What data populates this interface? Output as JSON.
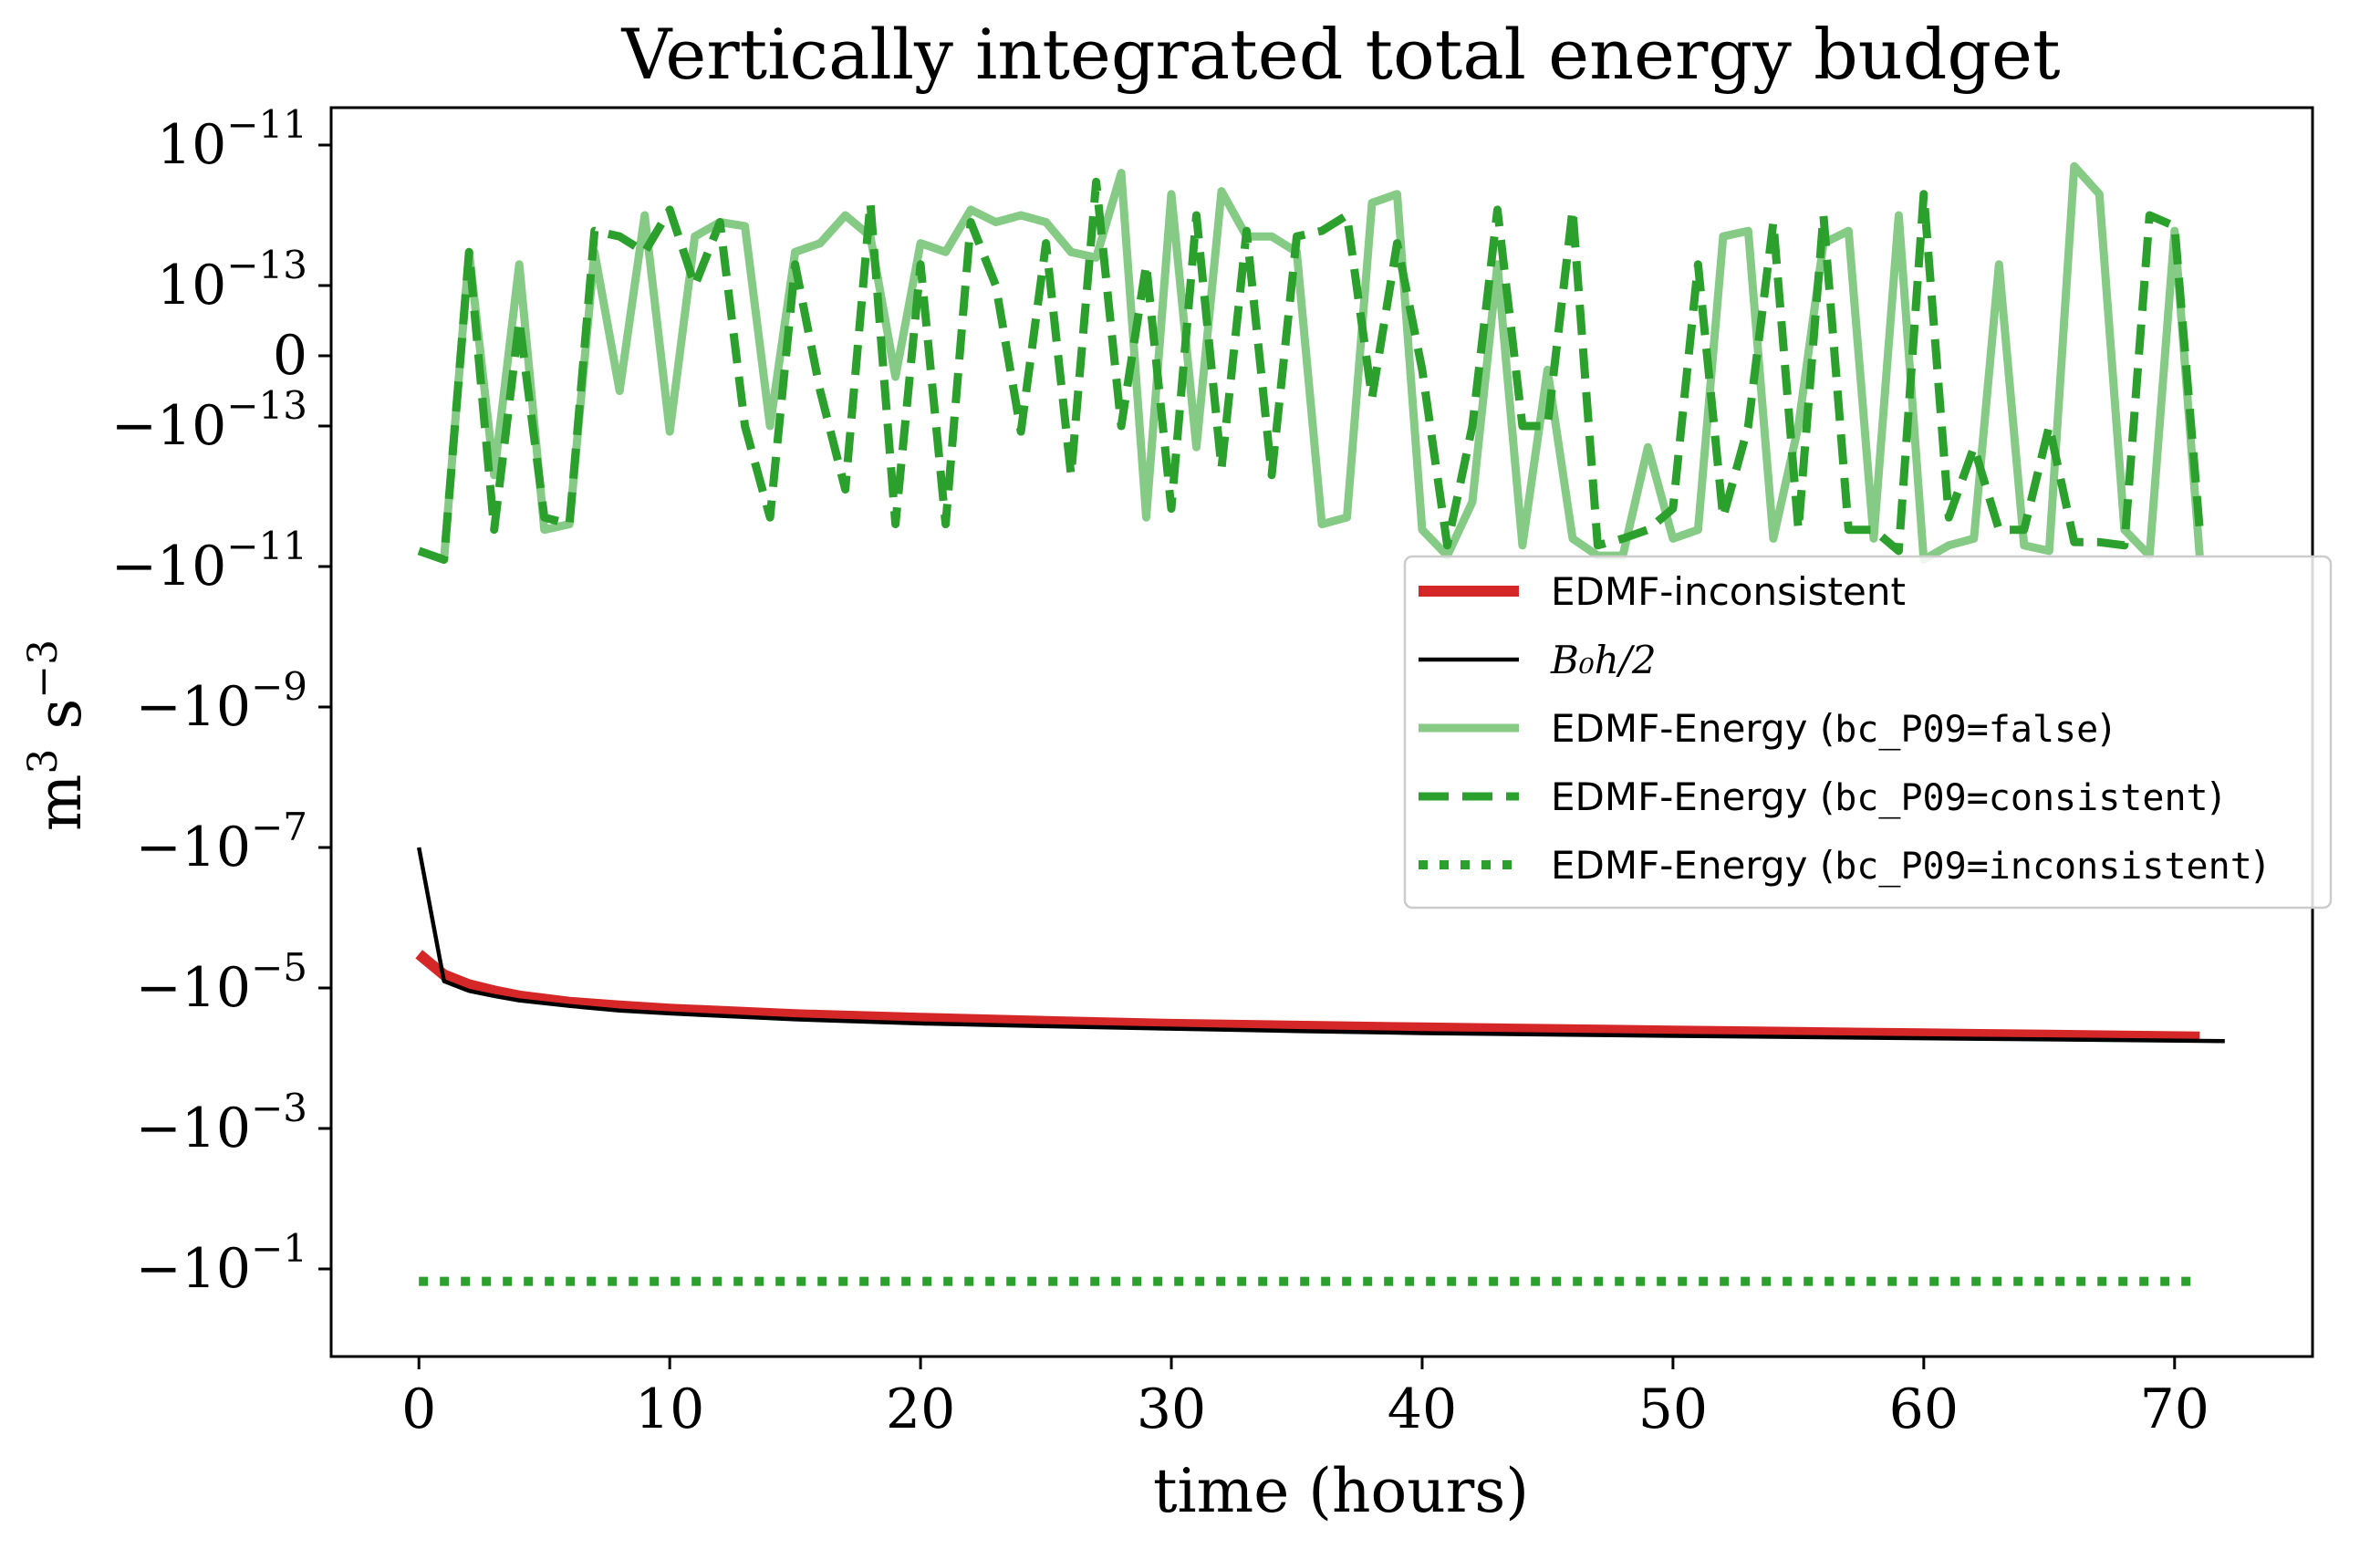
{
  "chart_data": {
    "type": "line",
    "title": "Vertically integrated total energy budget",
    "xlabel": "time (hours)",
    "ylabel_base": "m",
    "ylabel_exp1": "3",
    "ylabel_mid": " s",
    "ylabel_exp2": "−3",
    "xlim": [
      -3.5,
      75.5
    ],
    "xticks": [
      0,
      10,
      20,
      30,
      40,
      50,
      60,
      70
    ],
    "yscale": "symlog",
    "linthresh": 1e-13,
    "yticks": [
      {
        "value": 1e-11,
        "base": "10",
        "exp": "−11"
      },
      {
        "value": 1e-13,
        "base": "10",
        "exp": "−13"
      },
      {
        "value": 0,
        "base": "0",
        "exp": ""
      },
      {
        "value": -1e-13,
        "base": "−10",
        "exp": "−13"
      },
      {
        "value": -1e-11,
        "base": "−10",
        "exp": "−11"
      },
      {
        "value": -1e-09,
        "base": "−10",
        "exp": "−9"
      },
      {
        "value": -1e-07,
        "base": "−10",
        "exp": "−7"
      },
      {
        "value": -1e-05,
        "base": "−10",
        "exp": "−5"
      },
      {
        "value": -0.001,
        "base": "−10",
        "exp": "−3"
      },
      {
        "value": -0.1,
        "base": "−10",
        "exp": "−1"
      }
    ],
    "grid": false,
    "legend_position": "center-right",
    "legend": [
      {
        "label": "EDMF-inconsistent",
        "code": "",
        "suffix": "",
        "color": "#d62728",
        "style": "solid-thick"
      },
      {
        "label": "B₀h/2",
        "code": "",
        "suffix": "",
        "color": "#000000",
        "style": "solid-thin",
        "math": true
      },
      {
        "label": "EDMF-Energy (",
        "code": "bc_P09=false",
        "suffix": ")",
        "color": "#5cb85c",
        "style": "solid"
      },
      {
        "label": "EDMF-Energy (",
        "code": "bc_P09=consistent",
        "suffix": ")",
        "color": "#2ca02c",
        "style": "dashed"
      },
      {
        "label": "EDMF-Energy (",
        "code": "bc_P09=inconsistent",
        "suffix": ")",
        "color": "#2ca02c",
        "style": "dotted"
      }
    ],
    "series": [
      {
        "name": "EDMF-inconsistent",
        "color": "#d62728",
        "style": "solid-thick",
        "x": [
          0,
          1,
          2,
          3,
          4,
          6,
          8,
          10,
          15,
          20,
          25,
          30,
          35,
          40,
          45,
          50,
          55,
          60,
          65,
          71
        ],
        "y": [
          -3.3e-06,
          -6.5e-06,
          -9e-06,
          -1.1e-05,
          -1.3e-05,
          -1.6e-05,
          -1.8e-05,
          -2e-05,
          -2.4e-05,
          -2.7e-05,
          -3e-05,
          -3.3e-05,
          -3.5e-05,
          -3.7e-05,
          -3.9e-05,
          -4.1e-05,
          -4.3e-05,
          -4.5e-05,
          -4.7e-05,
          -5e-05
        ]
      },
      {
        "name": "B₀h/2",
        "color": "#000000",
        "style": "solid-thin",
        "x": [
          0,
          1,
          2,
          3,
          4,
          6,
          8,
          10,
          15,
          20,
          25,
          30,
          35,
          40,
          45,
          50,
          55,
          60,
          65,
          72
        ],
        "y": [
          -1e-07,
          -8e-06,
          -1.1e-05,
          -1.3e-05,
          -1.5e-05,
          -1.8e-05,
          -2.1e-05,
          -2.3e-05,
          -2.8e-05,
          -3.2e-05,
          -3.5e-05,
          -3.8e-05,
          -4.1e-05,
          -4.4e-05,
          -4.6e-05,
          -4.8e-05,
          -5e-05,
          -5.2e-05,
          -5.4e-05,
          -5.7e-05
        ]
      },
      {
        "name": "EDMF-Energy (bc_P09=false)",
        "color": "#5cb85c",
        "style": "solid",
        "x": [
          0,
          1,
          2,
          3,
          4,
          5,
          6,
          7,
          8,
          9,
          10,
          11,
          12,
          13,
          14,
          15,
          16,
          17,
          18,
          19,
          20,
          21,
          22,
          23,
          24,
          25,
          26,
          27,
          28,
          29,
          30,
          31,
          32,
          33,
          34,
          35,
          36,
          37,
          38,
          39,
          40,
          41,
          42,
          43,
          44,
          45,
          46,
          47,
          48,
          49,
          50,
          51,
          52,
          53,
          54,
          55,
          56,
          57,
          58,
          59,
          60,
          61,
          62,
          63,
          64,
          65,
          66,
          67,
          68,
          69,
          70,
          71
        ],
        "y": [
          -6e-12,
          -8e-12,
          3e-13,
          -5e-13,
          2e-13,
          -3e-12,
          -2.5e-12,
          3e-13,
          -5e-14,
          1e-12,
          -1.2e-13,
          5e-13,
          8e-13,
          7e-13,
          -1e-13,
          3e-13,
          4e-13,
          1e-12,
          5e-13,
          -3e-14,
          4e-13,
          3e-13,
          1.2e-12,
          8e-13,
          1e-12,
          8e-13,
          3e-13,
          2.5e-13,
          4e-12,
          -2e-12,
          2e-12,
          -2e-13,
          2.2e-12,
          5e-13,
          5e-13,
          3e-13,
          -2.5e-12,
          -2e-12,
          1.5e-12,
          2e-12,
          -3e-12,
          -7e-12,
          -1.2e-12,
          2e-13,
          -5e-12,
          -2e-14,
          -4e-12,
          -7e-12,
          -7e-12,
          -2e-13,
          -4e-12,
          -3e-12,
          5e-13,
          6e-13,
          -4e-12,
          -1e-13,
          4e-13,
          6e-13,
          -4e-12,
          1e-12,
          -8e-12,
          -5e-12,
          -4e-12,
          2e-13,
          -5e-12,
          -6e-12,
          5e-12,
          2e-12,
          -3e-12,
          -7e-12,
          6e-13,
          -7e-12
        ]
      },
      {
        "name": "EDMF-Energy (bc_P09=consistent)",
        "color": "#2ca02c",
        "style": "dashed",
        "x": [
          0,
          1,
          2,
          3,
          4,
          5,
          6,
          7,
          8,
          9,
          10,
          11,
          12,
          13,
          14,
          15,
          16,
          17,
          18,
          19,
          20,
          21,
          22,
          23,
          24,
          25,
          26,
          27,
          28,
          29,
          30,
          31,
          32,
          33,
          34,
          35,
          36,
          37,
          38,
          39,
          40,
          41,
          42,
          43,
          44,
          45,
          46,
          47,
          48,
          49,
          50,
          51,
          52,
          53,
          54,
          55,
          56,
          57,
          58,
          59,
          60,
          61,
          62,
          63,
          64,
          65,
          66,
          67,
          68,
          69,
          70,
          71
        ],
        "y": [
          -6e-12,
          -8e-12,
          3e-13,
          -3e-12,
          5e-14,
          -2e-12,
          -2.5e-12,
          6e-13,
          5e-13,
          3e-13,
          1.2e-12,
          1e-13,
          8e-13,
          -1e-13,
          -2e-12,
          2e-13,
          -5e-14,
          -8e-13,
          1.5e-12,
          -2.5e-12,
          2e-13,
          -2.5e-12,
          8e-13,
          1e-13,
          -1.2e-13,
          4e-13,
          -5e-13,
          3e-12,
          -1e-13,
          2e-13,
          -1.5e-12,
          1e-12,
          -4e-13,
          6e-13,
          -5e-13,
          5e-13,
          6e-13,
          1e-12,
          -6e-14,
          4e-13,
          -2e-14,
          -5e-12,
          -1e-13,
          1.2e-12,
          -1e-13,
          -1e-13,
          1.2e-12,
          -5e-12,
          -4e-12,
          -3e-12,
          -1.5e-12,
          2e-13,
          -2e-12,
          -1e-13,
          8e-13,
          -3e-12,
          1e-12,
          -3e-12,
          -3e-12,
          -6e-12,
          2e-12,
          -2e-12,
          -2e-13,
          -3e-12,
          -3e-12,
          -1e-13,
          -4.5e-12,
          -4.5e-12,
          -5e-12,
          1e-12,
          7e-13,
          -3e-12
        ]
      },
      {
        "name": "EDMF-Energy (bc_P09=inconsistent)",
        "color": "#2ca02c",
        "style": "dotted",
        "x": [
          0,
          71
        ],
        "y": [
          -0.15,
          -0.15
        ]
      }
    ]
  }
}
